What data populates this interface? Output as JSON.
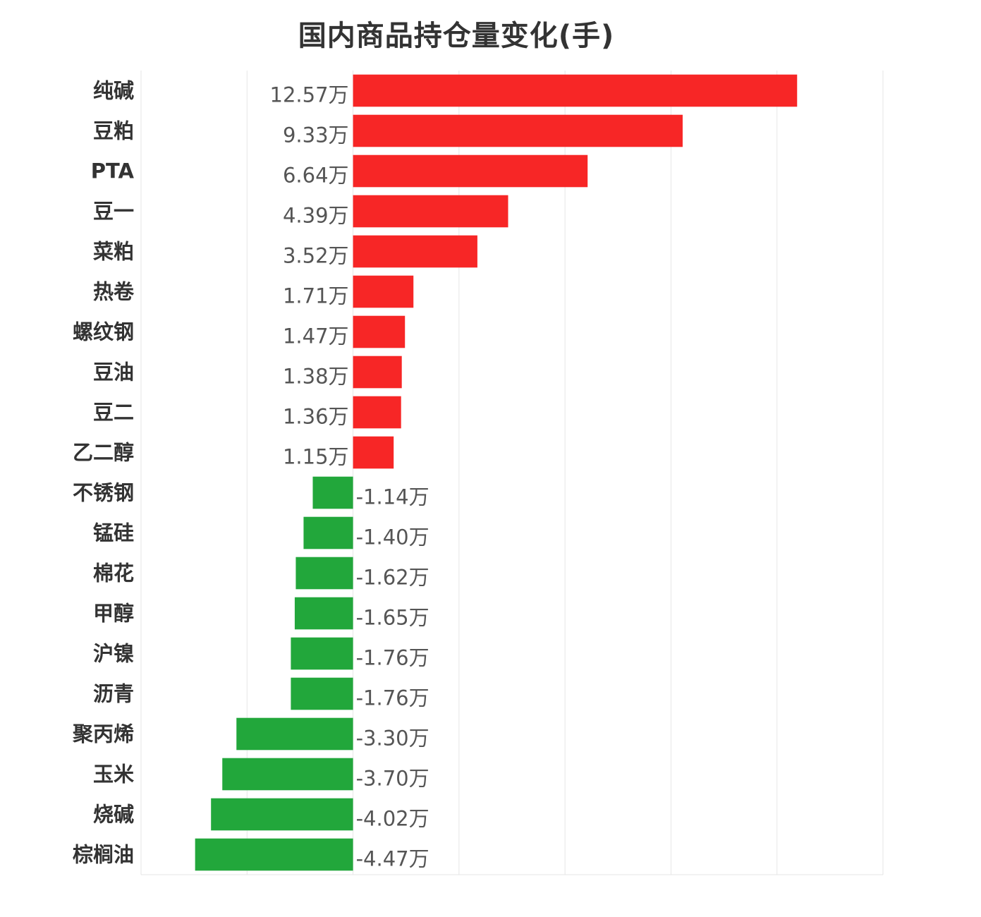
{
  "chart_data": {
    "type": "bar",
    "orientation": "horizontal",
    "title": "国内商品持仓量变化(手)",
    "xlabel": "",
    "ylabel": "",
    "unit_suffix": "万",
    "xlim": [
      -6,
      15
    ],
    "grid": true,
    "categories": [
      "纯碱",
      "豆粕",
      "PTA",
      "豆一",
      "菜粕",
      "热卷",
      "螺纹钢",
      "豆油",
      "豆二",
      "乙二醇",
      "不锈钢",
      "锰硅",
      "棉花",
      "甲醇",
      "沪镍",
      "沥青",
      "聚丙烯",
      "玉米",
      "烧碱",
      "棕榈油"
    ],
    "values": [
      12.57,
      9.33,
      6.64,
      4.39,
      3.52,
      1.71,
      1.47,
      1.38,
      1.36,
      1.15,
      -1.14,
      -1.4,
      -1.62,
      -1.65,
      -1.76,
      -1.76,
      -3.3,
      -3.7,
      -4.02,
      -4.47
    ],
    "value_labels": [
      "12.57万",
      "9.33万",
      "6.64万",
      "4.39万",
      "3.52万",
      "1.71万",
      "1.47万",
      "1.38万",
      "1.36万",
      "1.15万",
      "-1.14万",
      "-1.40万",
      "-1.62万",
      "-1.65万",
      "-1.76万",
      "-1.76万",
      "-3.30万",
      "-3.70万",
      "-4.02万",
      "-4.47万"
    ],
    "colors": {
      "positive": "#f72626",
      "negative": "#22a73b"
    }
  }
}
